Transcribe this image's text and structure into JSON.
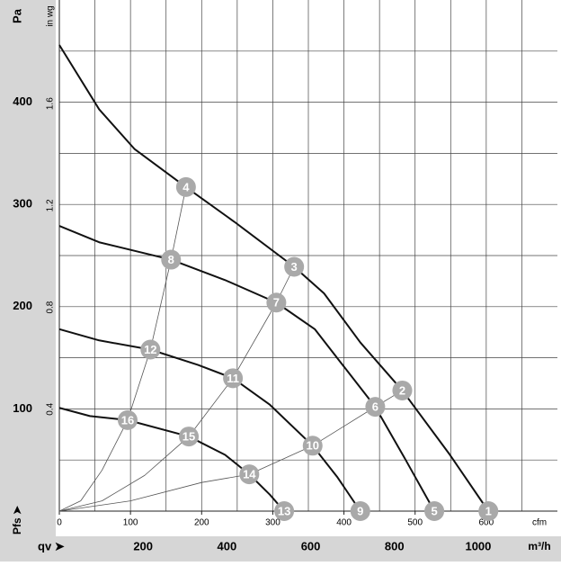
{
  "chart_data": {
    "type": "line",
    "y_label": "Pa",
    "y2_label": "in wg",
    "x_label": "cfm",
    "x2_label": "m³/h",
    "x_arrow_label": "qv ➤",
    "y_arrow_label": "Pfs ➤",
    "xlim": [
      0,
      700
    ],
    "xticks": [
      0,
      100,
      200,
      300,
      400,
      500,
      600
    ],
    "ylim": [
      0,
      500
    ],
    "yticks": [
      100,
      200,
      300,
      400
    ],
    "y2lim": [
      0,
      2.007
    ],
    "y2ticks": [
      0.4,
      0.8,
      1.2,
      1.6
    ],
    "x2lim": [
      0,
      1189
    ],
    "x2ticks": [
      200,
      400,
      600,
      800,
      1000
    ],
    "grid_x": [
      50,
      100,
      150,
      200,
      250,
      300,
      350,
      400,
      450,
      500,
      550,
      600,
      650
    ],
    "grid_y": [
      50,
      100,
      150,
      200,
      250,
      300,
      350,
      400,
      450
    ],
    "curve_color": "#111111",
    "system_color": "#555555",
    "marker_color": "#a9a9a9",
    "curves": [
      {
        "x": [
          0,
          56,
          106,
          178,
          246,
          330,
          372,
          423,
          482,
          549,
          603
        ],
        "y": [
          456,
          393,
          354,
          317,
          283,
          239,
          213,
          165,
          118,
          55,
          0
        ]
      },
      {
        "x": [
          0,
          56,
          157,
          233,
          305,
          359,
          444,
          486,
          527
        ],
        "y": [
          279,
          263,
          246,
          226,
          204,
          178,
          102,
          51,
          0
        ]
      },
      {
        "x": [
          0,
          56,
          128,
          195,
          244,
          296,
          356,
          391,
          423
        ],
        "y": [
          178,
          167,
          158,
          143,
          130,
          104,
          64,
          33,
          0
        ]
      },
      {
        "x": [
          0,
          43,
          96,
          182,
          233,
          267,
          296,
          316
        ],
        "y": [
          101,
          93,
          89,
          73,
          55,
          36,
          16,
          0
        ]
      }
    ],
    "system_curves": [
      {
        "x": [
          0,
          30,
          60,
          96,
          128,
          157,
          178
        ],
        "y": [
          0,
          10,
          40,
          89,
          158,
          246,
          317
        ]
      },
      {
        "x": [
          0,
          60,
          120,
          182,
          244,
          305,
          330
        ],
        "y": [
          0,
          10,
          35,
          73,
          130,
          204,
          239
        ]
      },
      {
        "x": [
          0,
          100,
          200,
          267,
          356,
          444,
          482
        ],
        "y": [
          0,
          10,
          28,
          36,
          64,
          102,
          118
        ]
      }
    ],
    "points": [
      {
        "label": "1",
        "x": 603,
        "y": 0
      },
      {
        "label": "2",
        "x": 482,
        "y": 118
      },
      {
        "label": "3",
        "x": 330,
        "y": 239
      },
      {
        "label": "4",
        "x": 178,
        "y": 317
      },
      {
        "label": "5",
        "x": 527,
        "y": 0
      },
      {
        "label": "6",
        "x": 444,
        "y": 102
      },
      {
        "label": "7",
        "x": 305,
        "y": 204
      },
      {
        "label": "8",
        "x": 157,
        "y": 246
      },
      {
        "label": "9",
        "x": 423,
        "y": 0
      },
      {
        "label": "10",
        "x": 356,
        "y": 64
      },
      {
        "label": "11",
        "x": 244,
        "y": 130
      },
      {
        "label": "12",
        "x": 128,
        "y": 158
      },
      {
        "label": "13",
        "x": 316,
        "y": 0
      },
      {
        "label": "14",
        "x": 267,
        "y": 36
      },
      {
        "label": "15",
        "x": 182,
        "y": 73
      },
      {
        "label": "16",
        "x": 96,
        "y": 89
      }
    ]
  }
}
